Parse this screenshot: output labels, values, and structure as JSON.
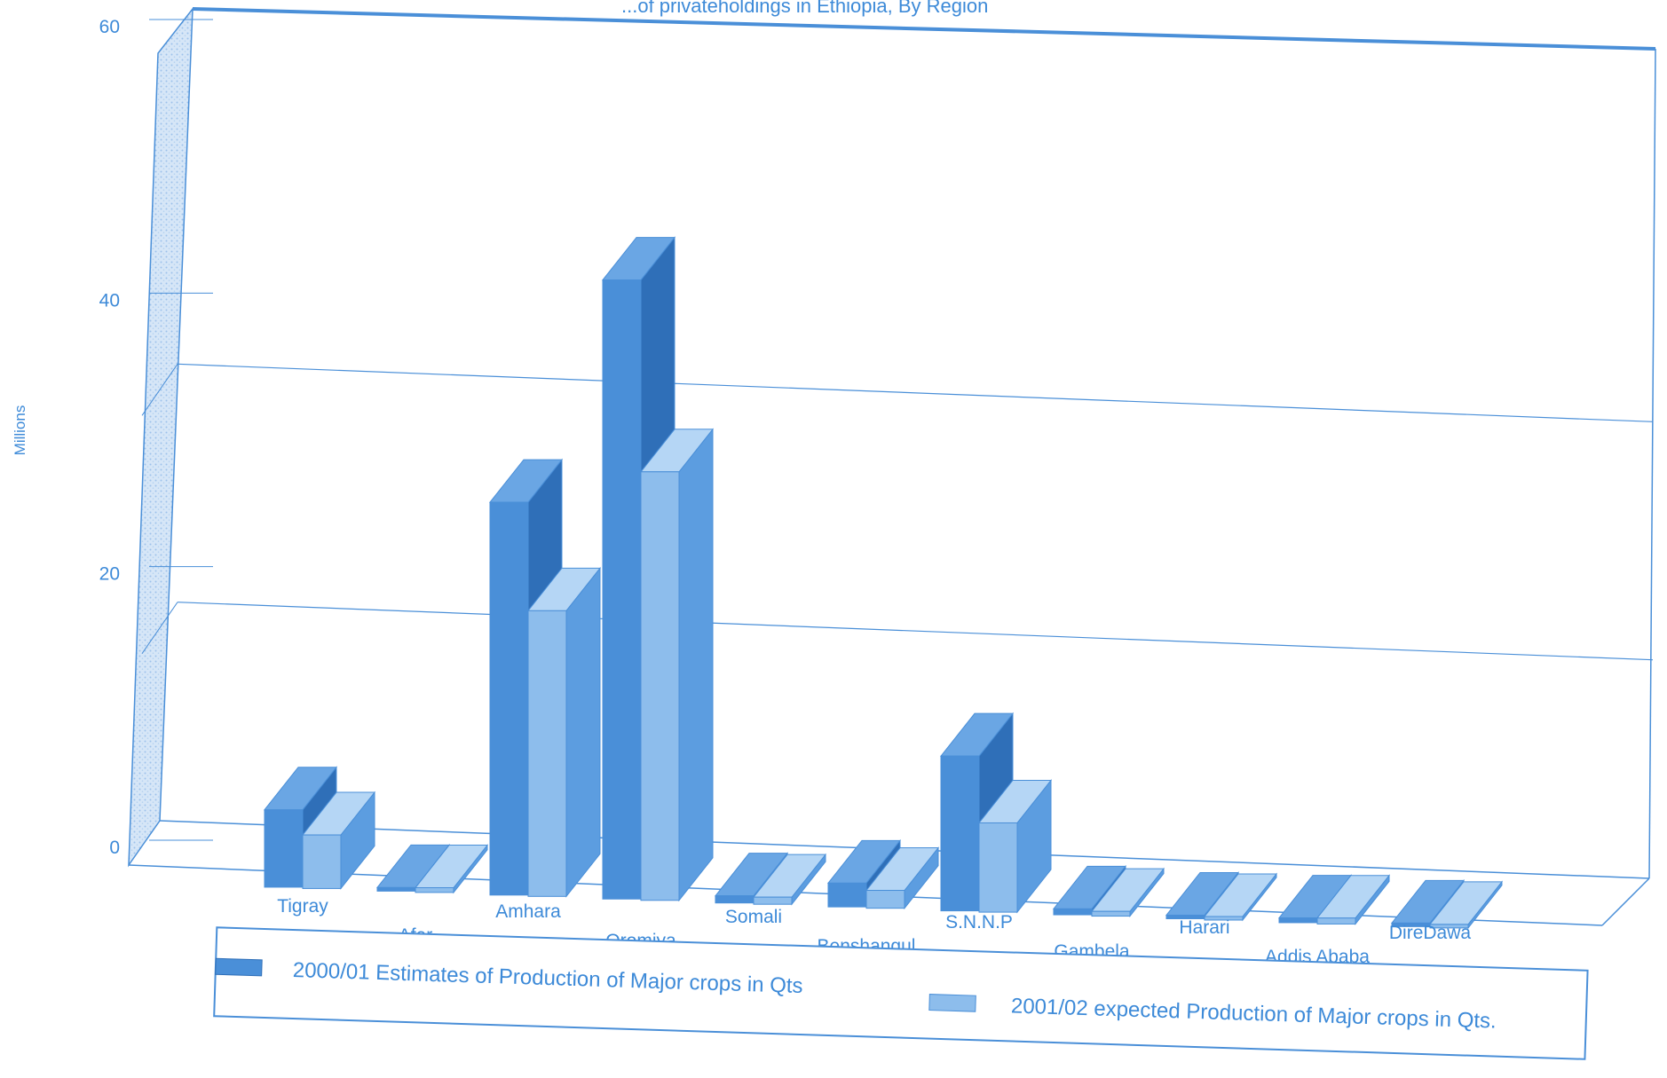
{
  "chart_data": {
    "type": "bar",
    "title": "...of privateholdings in Ethiopia, By Region",
    "ylabel": "Millions",
    "ylim": [
      0,
      60
    ],
    "yticks": [
      "0",
      "20",
      "40",
      "60"
    ],
    "categories": [
      "Tigray",
      "Afar",
      "Amhara",
      "Oromiya",
      "Somali",
      "Benshangul",
      "S.N.N.P",
      "Gambela",
      "Harari",
      "Addis Ababa",
      "DireDawa"
    ],
    "series": [
      {
        "name": "2000/01 Estimates of Production of Major crops in Qts",
        "values": [
          6.5,
          0.3,
          33,
          52,
          0.6,
          2,
          13,
          0.5,
          0.3,
          0.4,
          0.3
        ]
      },
      {
        "name": "2001/02 expected Production of Major crops in Qts.",
        "values": [
          4.5,
          0.4,
          24,
          36,
          0.6,
          1.5,
          7.5,
          0.4,
          0.3,
          0.5,
          0.3
        ]
      }
    ],
    "grid": true,
    "legend_position": "bottom",
    "style": "3d",
    "colors": {
      "series1": "#4a8fd8",
      "series2": "#8dbdec",
      "line": "#4a8fd8",
      "text": "#3d8ad8",
      "wall": "#b8d4f0"
    }
  }
}
